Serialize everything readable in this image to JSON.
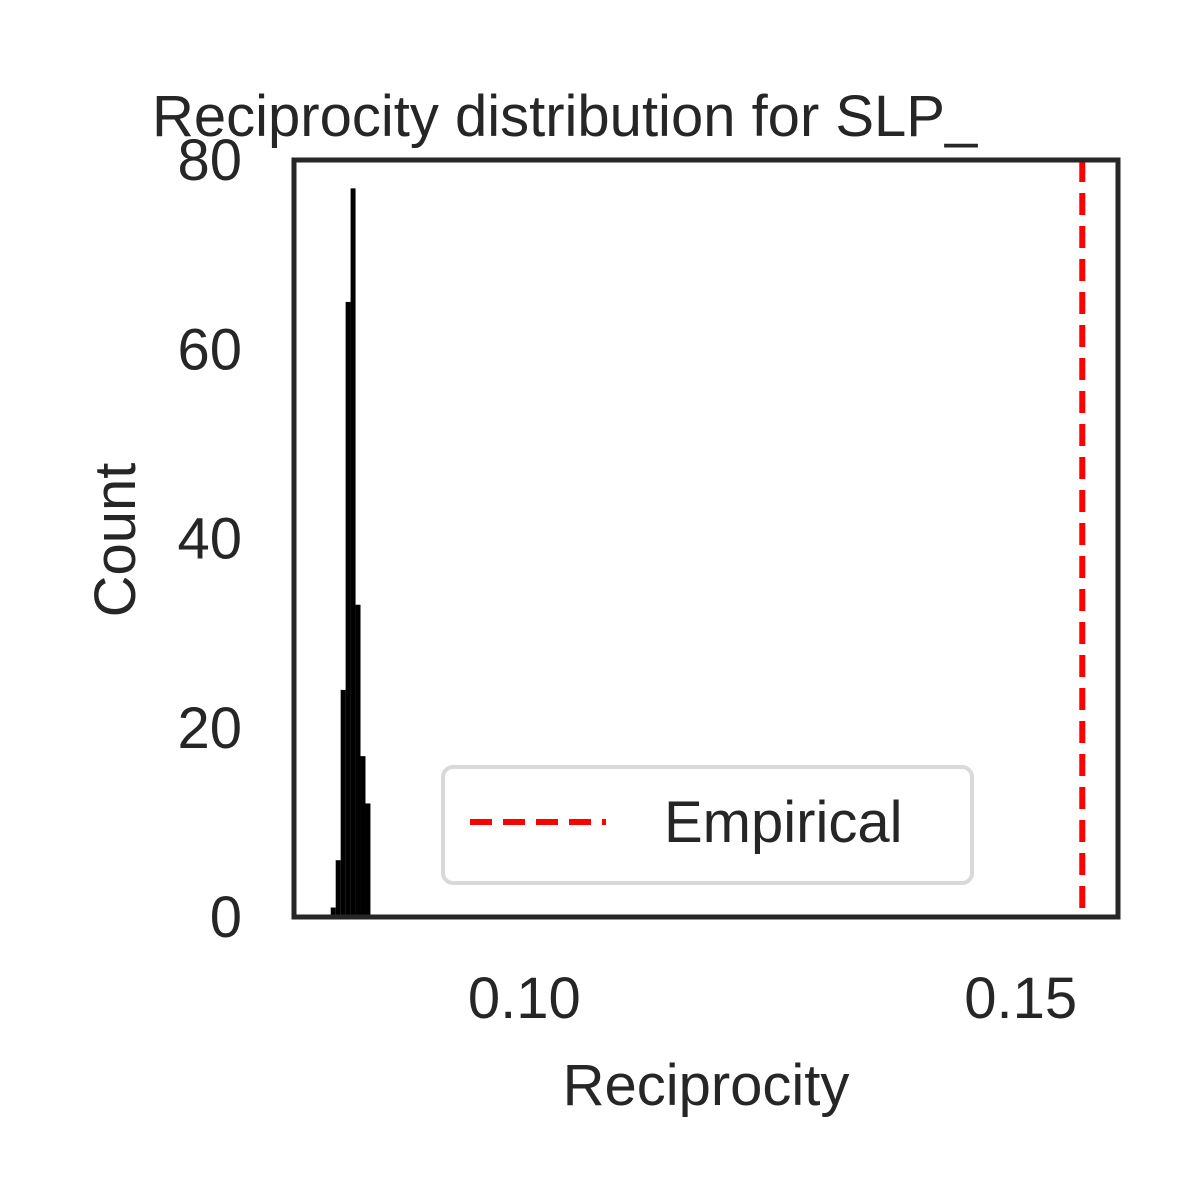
{
  "chart_data": {
    "type": "histogram",
    "title": "Reciprocity distribution for SLP_",
    "xlabel": "Reciprocity",
    "ylabel": "Count",
    "xlim": [
      0.0768,
      0.1598
    ],
    "ylim": [
      0,
      80
    ],
    "x_ticks": [
      {
        "value": 0.1,
        "label": "0.10"
      },
      {
        "value": 0.15,
        "label": "0.15"
      }
    ],
    "y_ticks": [
      {
        "value": 0,
        "label": "0"
      },
      {
        "value": 20,
        "label": "20"
      },
      {
        "value": 40,
        "label": "40"
      },
      {
        "value": 60,
        "label": "60"
      },
      {
        "value": 80,
        "label": "80"
      }
    ],
    "bins": [
      {
        "x0": 0.0805,
        "x1": 0.081,
        "count": 1
      },
      {
        "x0": 0.081,
        "x1": 0.0815,
        "count": 6
      },
      {
        "x0": 0.0815,
        "x1": 0.082,
        "count": 24
      },
      {
        "x0": 0.082,
        "x1": 0.0825,
        "count": 65
      },
      {
        "x0": 0.0825,
        "x1": 0.083,
        "count": 77
      },
      {
        "x0": 0.083,
        "x1": 0.0835,
        "count": 33
      },
      {
        "x0": 0.0835,
        "x1": 0.084,
        "count": 17
      },
      {
        "x0": 0.084,
        "x1": 0.0845,
        "count": 12
      }
    ],
    "bar_color": "#000000",
    "empirical": {
      "value": 0.1562,
      "label": "Empirical",
      "color": "#ff0000"
    },
    "legend_position": "lower-right",
    "grid": false
  }
}
